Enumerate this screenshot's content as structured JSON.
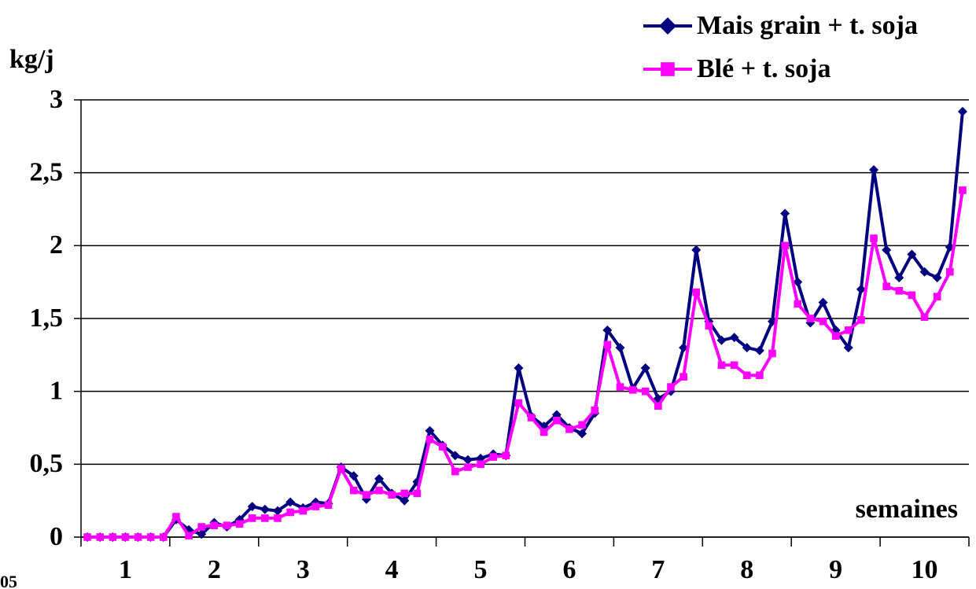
{
  "chart_data": {
    "type": "line",
    "y_label": "kg/j",
    "x_label": "semaines",
    "annotation": "05",
    "categories": [
      null,
      null,
      null,
      "1",
      null,
      null,
      null,
      null,
      null,
      null,
      "2",
      null,
      null,
      null,
      null,
      null,
      null,
      "3",
      null,
      null,
      null,
      null,
      null,
      null,
      "4",
      null,
      null,
      null,
      null,
      null,
      null,
      "5",
      null,
      null,
      null,
      null,
      null,
      null,
      "6",
      null,
      null,
      null,
      null,
      null,
      null,
      "7",
      null,
      null,
      null,
      null,
      null,
      null,
      "8",
      null,
      null,
      null,
      null,
      null,
      null,
      "9",
      null,
      null,
      null,
      null,
      null,
      null,
      "10",
      null,
      null,
      null
    ],
    "series": [
      {
        "name": "Mais grain + t. soja",
        "color": "#000080",
        "marker": "diamond",
        "values": [
          0,
          0,
          0,
          0,
          0,
          0,
          0,
          0.12,
          0.05,
          0.02,
          0.1,
          0.07,
          0.12,
          0.21,
          0.19,
          0.18,
          0.24,
          0.2,
          0.24,
          0.23,
          0.48,
          0.42,
          0.26,
          0.4,
          0.3,
          0.25,
          0.38,
          0.73,
          0.63,
          0.56,
          0.53,
          0.54,
          0.57,
          0.56,
          1.16,
          0.83,
          0.76,
          0.84,
          0.75,
          0.71,
          0.85,
          1.42,
          1.3,
          1.02,
          1.16,
          0.95,
          1.0,
          1.3,
          1.97,
          1.48,
          1.35,
          1.37,
          1.3,
          1.28,
          1.48,
          2.22,
          1.75,
          1.47,
          1.61,
          1.42,
          1.3,
          1.7,
          2.52,
          1.97,
          1.78,
          1.94,
          1.82,
          1.78,
          1.99,
          2.92
        ]
      },
      {
        "name": "Blé + t. soja",
        "color": "#ff00ff",
        "marker": "square",
        "values": [
          0,
          0,
          0,
          0,
          0,
          0,
          0,
          0.14,
          0.01,
          0.07,
          0.08,
          0.08,
          0.09,
          0.13,
          0.13,
          0.13,
          0.17,
          0.18,
          0.21,
          0.22,
          0.47,
          0.32,
          0.29,
          0.32,
          0.29,
          0.3,
          0.3,
          0.67,
          0.62,
          0.45,
          0.48,
          0.5,
          0.55,
          0.56,
          0.92,
          0.82,
          0.72,
          0.8,
          0.74,
          0.77,
          0.87,
          1.32,
          1.03,
          1.01,
          1.0,
          0.9,
          1.03,
          1.1,
          1.68,
          1.45,
          1.18,
          1.18,
          1.11,
          1.11,
          1.26,
          2.0,
          1.6,
          1.5,
          1.48,
          1.38,
          1.42,
          1.49,
          2.05,
          1.72,
          1.69,
          1.66,
          1.51,
          1.65,
          1.82,
          2.38
        ]
      }
    ],
    "ylim": [
      0,
      3
    ],
    "yticks": [
      0,
      {
        "value": 0.5,
        "label": "0,5"
      },
      1,
      {
        "value": 1.5,
        "label": "1,5"
      },
      2,
      {
        "value": 2.5,
        "label": "2,5"
      },
      3
    ],
    "grid": true
  }
}
